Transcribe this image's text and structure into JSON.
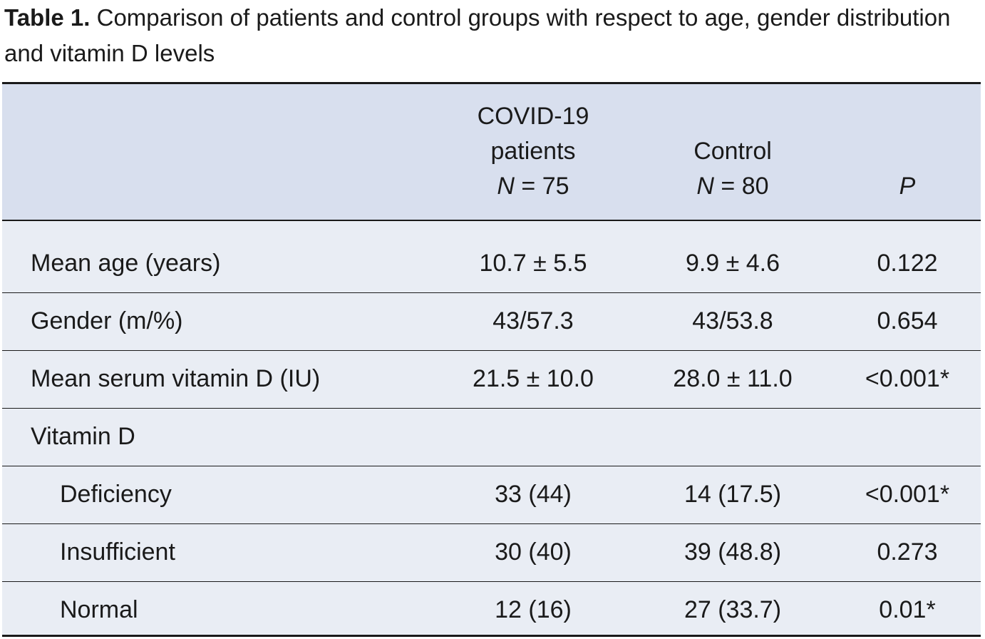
{
  "caption": {
    "label": "Table 1.",
    "text": "Comparison of patients and control groups with respect to age, gender distribution and vitamin D levels"
  },
  "header": {
    "covid_line1": "COVID-19",
    "covid_line2": "patients",
    "covid_n_italic": "N",
    "covid_n_value": " = 75",
    "control_line1": "Control",
    "control_n_italic": "N",
    "control_n_value": " = 80",
    "p": "P"
  },
  "rows": [
    {
      "label": "Mean age (years)",
      "covid": "10.7 ± 5.5",
      "control": "9.9 ± 4.6",
      "p": "0.122",
      "indent": false
    },
    {
      "label": "Gender (m/%)",
      "covid": "43/57.3",
      "control": "43/53.8",
      "p": "0.654",
      "indent": false
    },
    {
      "label": "Mean serum vitamin D (IU)",
      "covid": "21.5 ± 10.0",
      "control": "28.0 ± 11.0",
      "p": "<0.001*",
      "indent": false
    },
    {
      "label": "Vitamin D",
      "covid": "",
      "control": "",
      "p": "",
      "indent": false
    },
    {
      "label": "Deficiency",
      "covid": "33 (44)",
      "control": "14 (17.5)",
      "p": "<0.001*",
      "indent": true
    },
    {
      "label": "Insufficient",
      "covid": "30 (40)",
      "control": "39 (48.8)",
      "p": "0.273",
      "indent": true
    },
    {
      "label": "Normal",
      "covid": "12 (16)",
      "control": "27 (33.7)",
      "p": "0.01*",
      "indent": true
    }
  ],
  "colors": {
    "header_bg": "#d8dfee",
    "body_bg": "#e9edf4",
    "rule": "#1a1a1a"
  }
}
